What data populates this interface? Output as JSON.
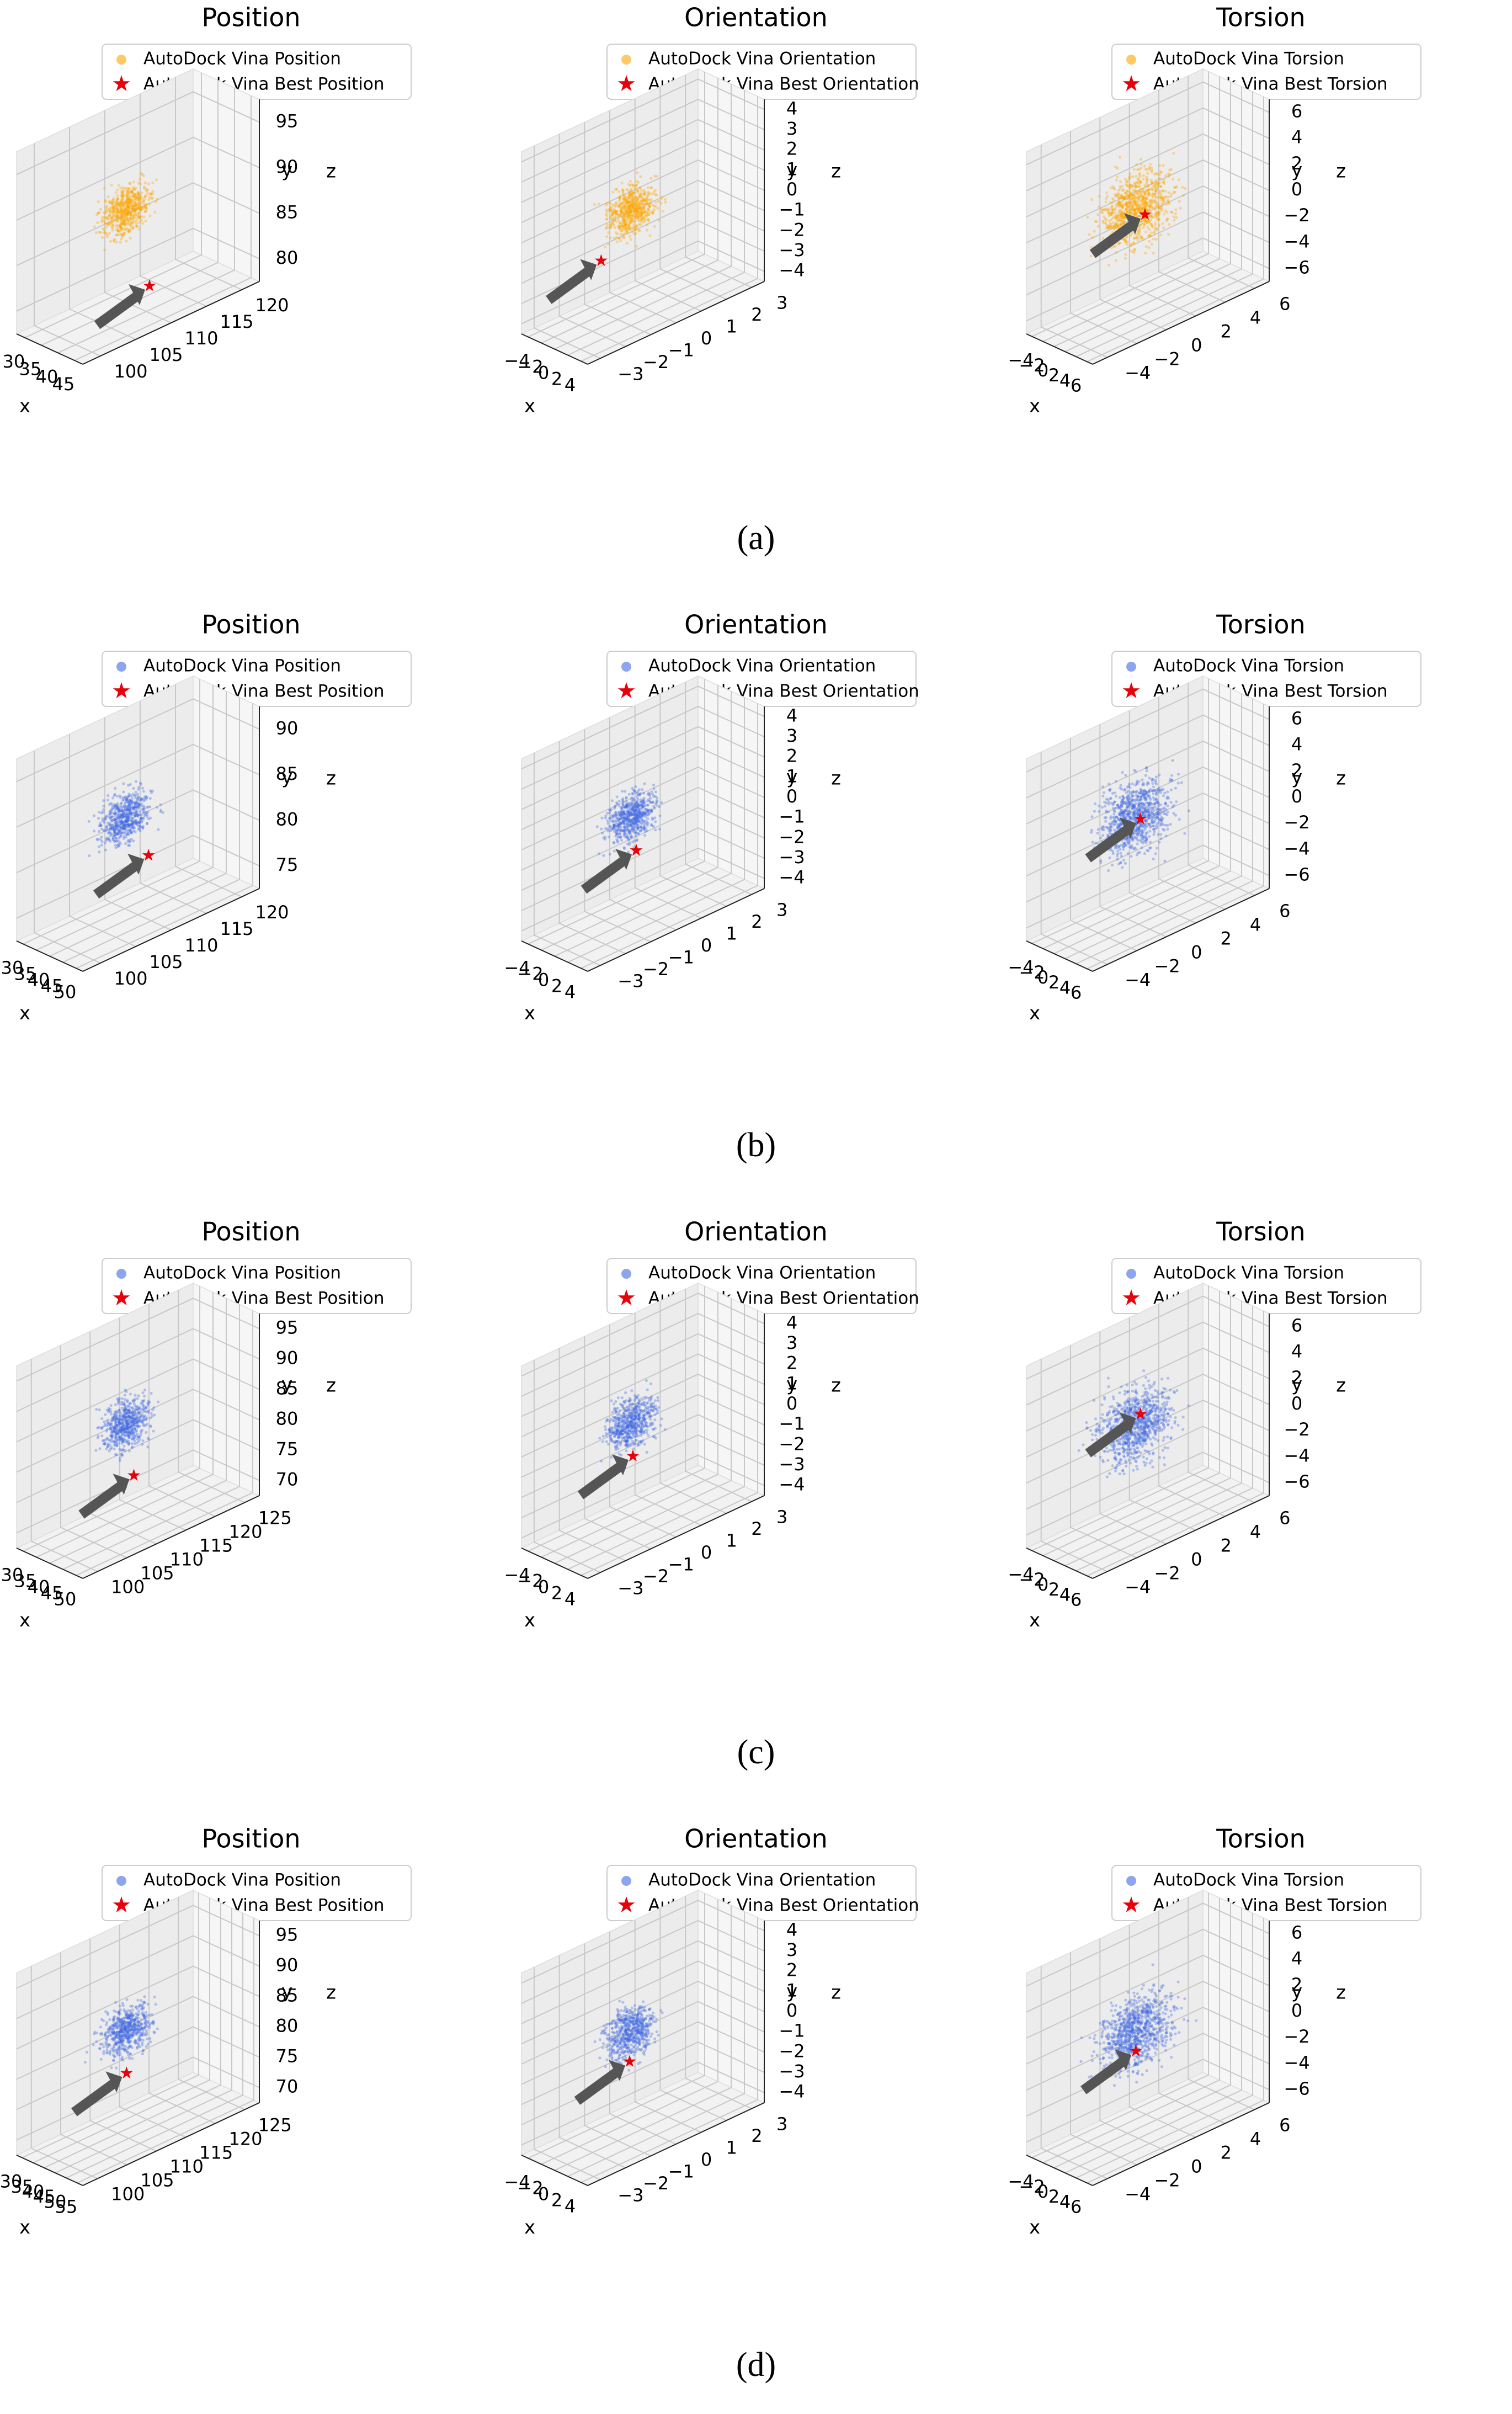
{
  "figure": {
    "row_captions": [
      "(a)",
      "(b)",
      "(c)",
      "(d)"
    ],
    "colors": {
      "orange": "#ffa500",
      "blue": "#4169e1",
      "best": "#e8000b",
      "arrow": "#555555"
    }
  },
  "chart_data": [
    {
      "type": "scatter3d",
      "row": "a",
      "title": "Position",
      "xlabel": "x",
      "ylabel": "y",
      "zlabel": "z",
      "xticks": [
        "30",
        "35",
        "40",
        "45"
      ],
      "yticks": [
        "100",
        "105",
        "110",
        "115",
        "120"
      ],
      "zticks": [
        "80",
        "85",
        "90",
        "95"
      ],
      "legend": [
        "AutoDock Vina Position",
        "AutoDock Vina Best Position"
      ],
      "color": "#ffa500",
      "best": [
        44.2,
        108.5,
        81.5
      ]
    },
    {
      "type": "scatter3d",
      "row": "a",
      "title": "Orientation",
      "xlabel": "x",
      "ylabel": "y",
      "zlabel": "z",
      "xticks": [
        "−4",
        "−2",
        "0",
        "2",
        "4"
      ],
      "yticks": [
        "−3",
        "−2",
        "−1",
        "0",
        "1",
        "2",
        "3"
      ],
      "zticks": [
        "−4",
        "−3",
        "−2",
        "−1",
        "0",
        "1",
        "2",
        "3",
        "4"
      ],
      "legend": [
        "AutoDock Vina Orientation",
        "AutoDock Vina Best Orientation"
      ],
      "color": "#ffa500",
      "best": [
        -2.5,
        -1.0,
        -2.0
      ]
    },
    {
      "type": "scatter3d",
      "row": "a",
      "title": "Torsion",
      "xlabel": "x",
      "ylabel": "y",
      "zlabel": "z",
      "xticks": [
        "−4",
        "−2",
        "0",
        "2",
        "4",
        "6"
      ],
      "yticks": [
        "−4",
        "−2",
        "0",
        "2",
        "4",
        "6"
      ],
      "zticks": [
        "−6",
        "−4",
        "−2",
        "0",
        "2",
        "4",
        "6"
      ],
      "legend": [
        "AutoDock Vina Torsion",
        "AutoDock Vina Best Torsion"
      ],
      "color": "#ffa500",
      "best": [
        0.5,
        1.0,
        0.0
      ]
    },
    {
      "type": "scatter3d",
      "row": "b",
      "title": "Position",
      "xlabel": "x",
      "ylabel": "y",
      "zlabel": "z",
      "xticks": [
        "30",
        "35",
        "40",
        "45",
        "50"
      ],
      "yticks": [
        "100",
        "105",
        "110",
        "115",
        "120"
      ],
      "zticks": [
        "75",
        "80",
        "85",
        "90"
      ],
      "legend": [
        "AutoDock Vina Position",
        "AutoDock Vina Best Position"
      ],
      "color": "#4169e1",
      "best": [
        44.0,
        110.0,
        79.5
      ]
    },
    {
      "type": "scatter3d",
      "row": "b",
      "title": "Orientation",
      "xlabel": "x",
      "ylabel": "y",
      "zlabel": "z",
      "xticks": [
        "−4",
        "−2",
        "0",
        "2",
        "4"
      ],
      "yticks": [
        "−3",
        "−2",
        "−1",
        "0",
        "1",
        "2",
        "3"
      ],
      "zticks": [
        "−4",
        "−3",
        "−2",
        "−1",
        "0",
        "1",
        "2",
        "3",
        "4"
      ],
      "legend": [
        "AutoDock Vina Orientation",
        "AutoDock Vina Best Orientation"
      ],
      "color": "#4169e1",
      "best": [
        -1.0,
        0.0,
        -1.5
      ]
    },
    {
      "type": "scatter3d",
      "row": "b",
      "title": "Torsion",
      "xlabel": "x",
      "ylabel": "y",
      "zlabel": "z",
      "xticks": [
        "−4",
        "−2",
        "0",
        "2",
        "4",
        "6"
      ],
      "yticks": [
        "−4",
        "−2",
        "0",
        "2",
        "4",
        "6"
      ],
      "zticks": [
        "−6",
        "−4",
        "−2",
        "0",
        "2",
        "4",
        "6"
      ],
      "legend": [
        "AutoDock Vina Torsion",
        "AutoDock Vina Best Torsion"
      ],
      "color": "#4169e1",
      "best": [
        -3.0,
        2.0,
        -1.0
      ]
    },
    {
      "type": "scatter3d",
      "row": "c",
      "title": "Position",
      "xlabel": "x",
      "ylabel": "y",
      "zlabel": "z",
      "xticks": [
        "30",
        "35",
        "40",
        "45",
        "50"
      ],
      "yticks": [
        "100",
        "105",
        "110",
        "115",
        "120",
        "125"
      ],
      "zticks": [
        "70",
        "75",
        "80",
        "85",
        "90",
        "95"
      ],
      "legend": [
        "AutoDock Vina Position",
        "AutoDock Vina Best Position"
      ],
      "color": "#4169e1",
      "best": [
        44.0,
        110.0,
        77.0
      ]
    },
    {
      "type": "scatter3d",
      "row": "c",
      "title": "Orientation",
      "xlabel": "x",
      "ylabel": "y",
      "zlabel": "z",
      "xticks": [
        "−4",
        "−2",
        "0",
        "2",
        "4"
      ],
      "yticks": [
        "−3",
        "−2",
        "−1",
        "0",
        "1",
        "2",
        "3"
      ],
      "zticks": [
        "−4",
        "−3",
        "−2",
        "−1",
        "0",
        "1",
        "2",
        "3",
        "4"
      ],
      "legend": [
        "AutoDock Vina Orientation",
        "AutoDock Vina Best Orientation"
      ],
      "color": "#4169e1",
      "best": [
        -1.5,
        0.0,
        -1.5
      ]
    },
    {
      "type": "scatter3d",
      "row": "c",
      "title": "Torsion",
      "xlabel": "x",
      "ylabel": "y",
      "zlabel": "z",
      "xticks": [
        "−4",
        "−2",
        "0",
        "2",
        "4",
        "6"
      ],
      "yticks": [
        "−4",
        "−2",
        "0",
        "2",
        "4",
        "6"
      ],
      "zticks": [
        "−6",
        "−4",
        "−2",
        "0",
        "2",
        "4",
        "6"
      ],
      "legend": [
        "AutoDock Vina Torsion",
        "AutoDock Vina Best Torsion"
      ],
      "color": "#4169e1",
      "best": [
        1.0,
        0.5,
        1.5
      ]
    },
    {
      "type": "scatter3d",
      "row": "d",
      "title": "Position",
      "xlabel": "x",
      "ylabel": "y",
      "zlabel": "z",
      "xticks": [
        "30",
        "35",
        "40",
        "45",
        "50",
        "55"
      ],
      "yticks": [
        "100",
        "105",
        "110",
        "115",
        "120",
        "125"
      ],
      "zticks": [
        "70",
        "75",
        "80",
        "85",
        "90",
        "95"
      ],
      "legend": [
        "AutoDock Vina Position",
        "AutoDock Vina Best Position"
      ],
      "color": "#4169e1",
      "best": [
        44.0,
        110.0,
        78.0
      ]
    },
    {
      "type": "scatter3d",
      "row": "d",
      "title": "Orientation",
      "xlabel": "x",
      "ylabel": "y",
      "zlabel": "z",
      "xticks": [
        "−4",
        "−2",
        "0",
        "2",
        "4"
      ],
      "yticks": [
        "−3",
        "−2",
        "−1",
        "0",
        "1",
        "2",
        "3"
      ],
      "zticks": [
        "−4",
        "−3",
        "−2",
        "−1",
        "0",
        "1",
        "2",
        "3",
        "4"
      ],
      "legend": [
        "AutoDock Vina Orientation",
        "AutoDock Vina Best Orientation"
      ],
      "color": "#4169e1",
      "best": [
        -2.0,
        0.0,
        -1.5
      ]
    },
    {
      "type": "scatter3d",
      "row": "d",
      "title": "Torsion",
      "xlabel": "x",
      "ylabel": "y",
      "zlabel": "z",
      "xticks": [
        "−4",
        "−2",
        "0",
        "2",
        "4",
        "6"
      ],
      "yticks": [
        "−4",
        "−2",
        "0",
        "2",
        "4",
        "6"
      ],
      "zticks": [
        "−6",
        "−4",
        "−2",
        "0",
        "2",
        "4",
        "6"
      ],
      "legend": [
        "AutoDock Vina Torsion",
        "AutoDock Vina Best Torsion"
      ],
      "color": "#4169e1",
      "best": [
        -2.5,
        1.5,
        -2.0
      ]
    }
  ]
}
